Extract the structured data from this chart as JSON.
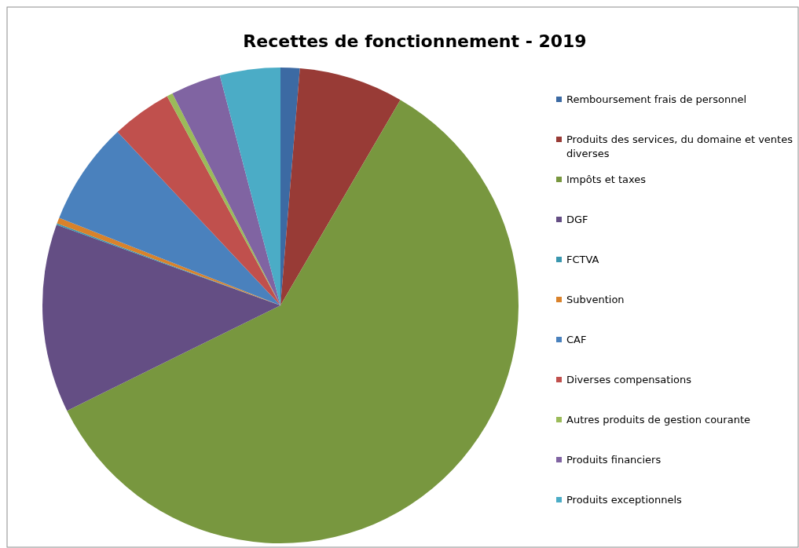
{
  "chart_data": {
    "type": "pie",
    "title": "Recettes de fonctionnement - 2019",
    "categories": [
      "Remboursement frais de personnel",
      "Produits des services, du domaine et ventes diverses",
      "Impôts et taxes",
      "DGF",
      "FCTVA",
      "Subvention",
      "CAF",
      "Diverses compensations",
      "Autres produits de gestion courante",
      "Produits financiers",
      "Produits exceptionnels"
    ],
    "values": [
      1.3,
      7.1,
      59.3,
      12.8,
      0.1,
      0.4,
      7.0,
      4.1,
      0.4,
      3.4,
      4.1
    ],
    "colors": [
      "#3c6aa3",
      "#983b36",
      "#78973f",
      "#644e84",
      "#3a96ae",
      "#d9822b",
      "#4a81bd",
      "#c0504d",
      "#9bbb59",
      "#8064a2",
      "#4bacc6"
    ],
    "legend": "right"
  }
}
